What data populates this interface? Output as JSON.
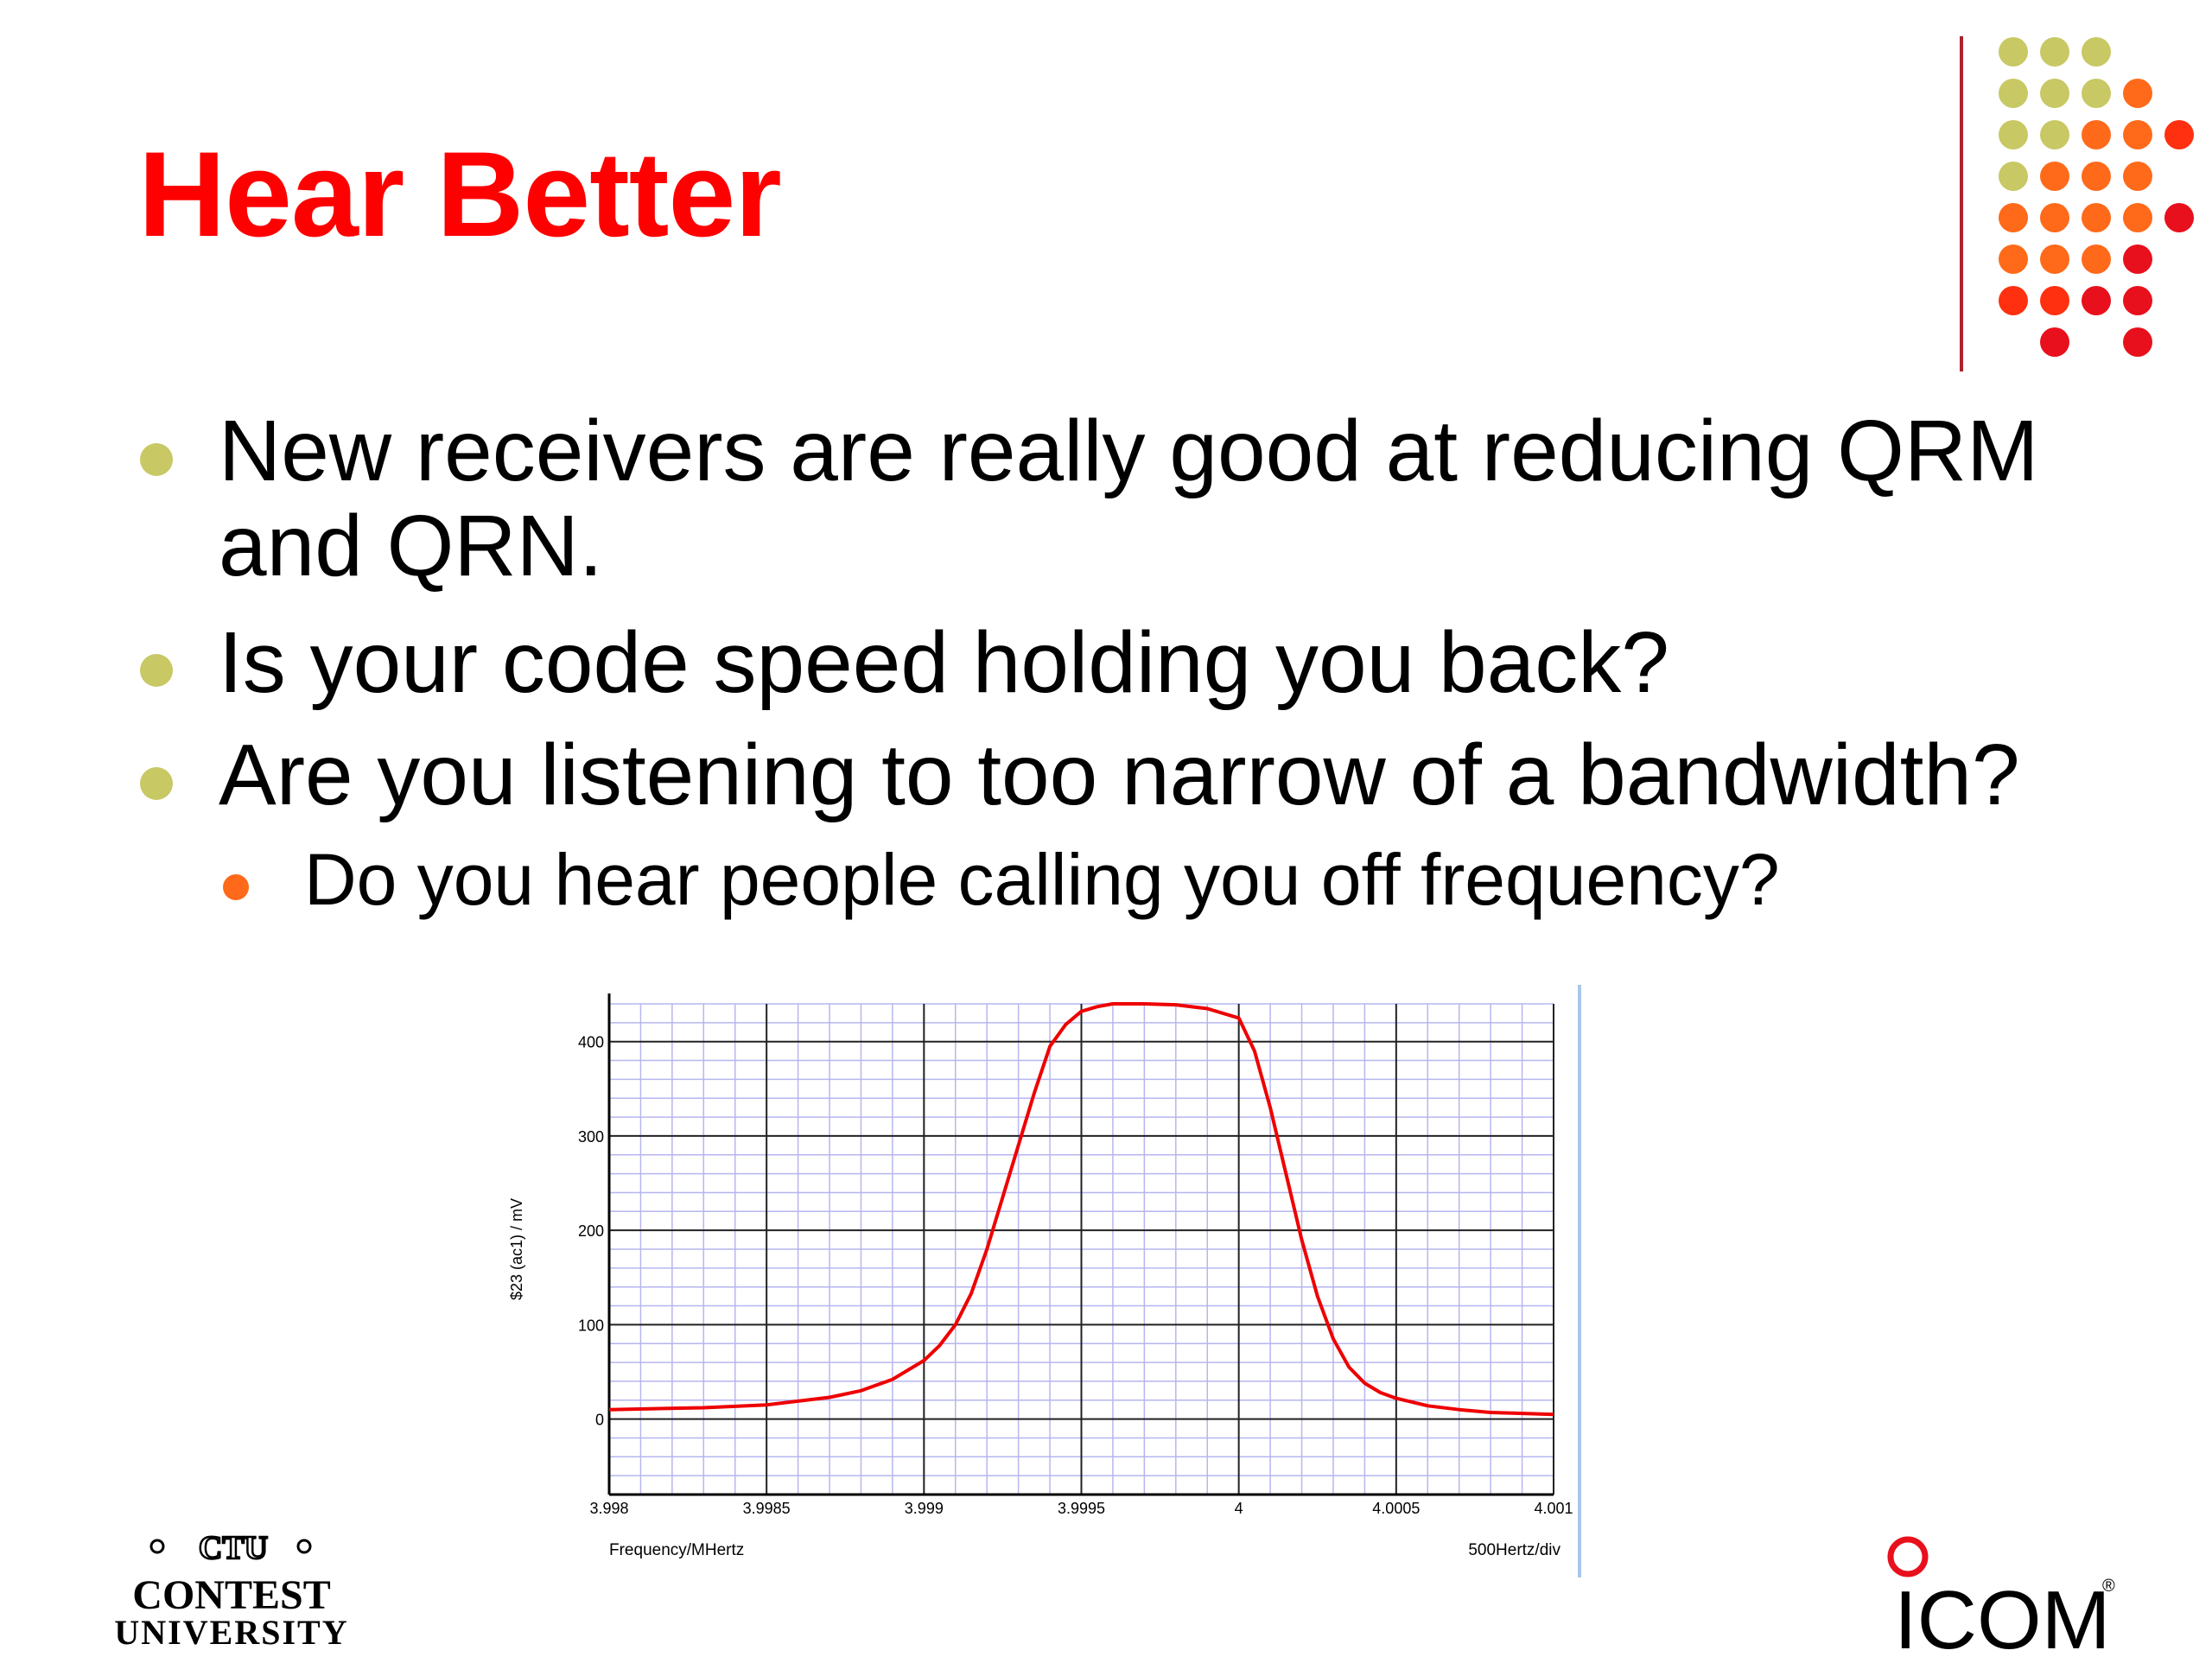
{
  "slide": {
    "title": "Hear Better",
    "title_color": "#ff0000",
    "bullets": [
      {
        "level": 1,
        "lines": [
          "New receivers are really good at reducing QRM",
          "and QRN."
        ]
      },
      {
        "level": 1,
        "lines": [
          "Is your code speed holding you back?"
        ]
      },
      {
        "level": 1,
        "lines": [
          "Are you listening to too narrow of a bandwidth?"
        ]
      },
      {
        "level": 2,
        "lines": [
          "Do you hear people calling you off frequency?"
        ]
      }
    ],
    "bullet_colors": {
      "level1": "#c8c864",
      "level2": "#ff6a1a"
    },
    "decoration_colors": [
      "#c8c864",
      "#ff6a1a",
      "#ff3010",
      "#e8101c"
    ]
  },
  "chart_data": {
    "type": "line",
    "xlabel": "Frequency/MHertz",
    "ylabel": "$23 (ac1) / mV",
    "scale_note": "500Hertz/div",
    "xlim": [
      3.998,
      4.001
    ],
    "ylim": [
      -80,
      440
    ],
    "x_ticks": [
      "3.998",
      "3.9985",
      "3.999",
      "3.9995",
      "4",
      "4.0005",
      "4.001"
    ],
    "y_ticks": [
      "400",
      "300",
      "200",
      "100",
      "0"
    ],
    "grid": true,
    "line_color": "#ee0000",
    "series": [
      {
        "x": [
          3.998,
          3.9983,
          3.9985,
          3.9987,
          3.9988,
          3.9989,
          3.999,
          3.99905,
          3.9991,
          3.99915,
          3.9992,
          3.99925,
          3.9993,
          3.99935,
          3.9994,
          3.99945,
          3.9995,
          3.99955,
          3.9996,
          3.9997,
          3.9998,
          3.9999,
          4.0,
          4.00005,
          4.0001,
          4.00015,
          4.0002,
          4.00025,
          4.0003,
          4.00035,
          4.0004,
          4.00045,
          4.0005,
          4.0006,
          4.0007,
          4.0008,
          4.001
        ],
        "values": [
          10,
          12,
          15,
          23,
          30,
          42,
          62,
          78,
          100,
          133,
          180,
          235,
          290,
          345,
          395,
          418,
          432,
          437,
          440,
          440,
          439,
          435,
          425,
          390,
          330,
          260,
          190,
          130,
          85,
          55,
          38,
          28,
          22,
          14,
          10,
          7,
          5
        ]
      }
    ]
  },
  "logos": {
    "ctu": {
      "top": "CTU",
      "line1": "CONTEST",
      "line2": "UNIVERSITY"
    },
    "icom": {
      "text": "ICOM",
      "reg": "®"
    }
  }
}
